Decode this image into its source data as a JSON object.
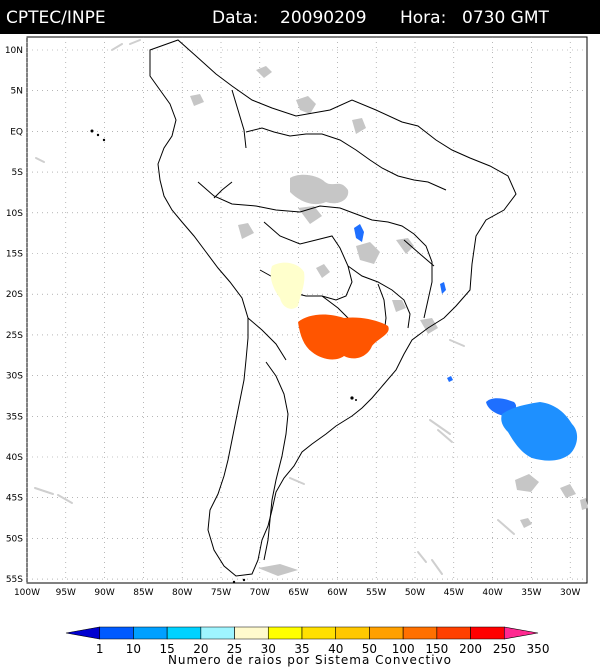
{
  "header": {
    "agency": "CPTEC/INPE",
    "date_label": "Data:",
    "date_value": "20090209",
    "hour_label": "Hora:",
    "hour_value": "0730 GMT"
  },
  "map": {
    "lat_labels": [
      "10N",
      "5N",
      "EQ",
      "5S",
      "10S",
      "15S",
      "20S",
      "25S",
      "30S",
      "35S",
      "40S",
      "45S",
      "50S",
      "55S"
    ],
    "lon_labels": [
      "100W",
      "95W",
      "90W",
      "85W",
      "80W",
      "75W",
      "70W",
      "65W",
      "60W",
      "55W",
      "50W",
      "45W",
      "40W",
      "35W",
      "30W"
    ],
    "grid": true,
    "overlay_colors": {
      "cloud": "#c0c0c0",
      "blue": "#1e6fff",
      "light_blue": "#1e90ff",
      "orange": "#ff5a00",
      "pale_yellow": "#ffffc8"
    }
  },
  "legend": {
    "ticks": [
      "1",
      "10",
      "15",
      "20",
      "25",
      "30",
      "35",
      "40",
      "50",
      "100",
      "150",
      "200",
      "250",
      "350"
    ],
    "colors": [
      "#0000d0",
      "#005aff",
      "#00a0ff",
      "#00d2ff",
      "#9ff5ff",
      "#fffacd",
      "#ffff00",
      "#ffe000",
      "#ffc800",
      "#ffa000",
      "#ff7000",
      "#ff4000",
      "#ff0000",
      "#ff2890"
    ],
    "title": "Numero de raios por Sistema Convectivo"
  }
}
